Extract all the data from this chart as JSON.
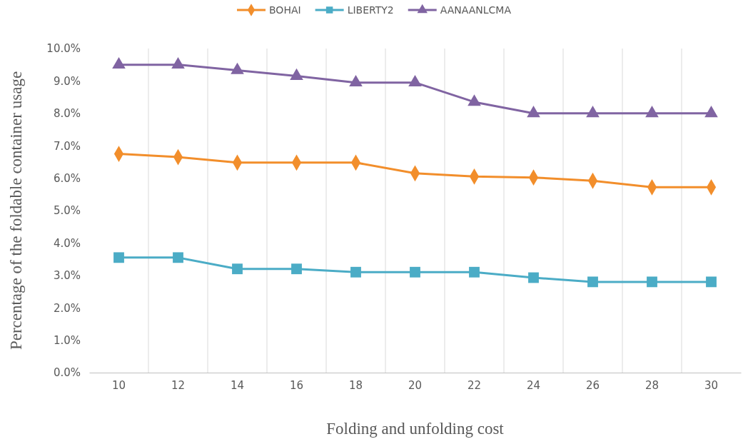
{
  "chart_data": {
    "type": "line",
    "xlabel": "Folding and unfolding cost",
    "ylabel": "Percentage of the foldable container usage",
    "categories": [
      "10",
      "12",
      "14",
      "16",
      "18",
      "20",
      "22",
      "24",
      "26",
      "28",
      "30"
    ],
    "ylim": [
      0,
      10
    ],
    "yticks": [
      {
        "value": 0,
        "label": "0.0%"
      },
      {
        "value": 1,
        "label": "1.0%"
      },
      {
        "value": 2,
        "label": "2.0%"
      },
      {
        "value": 3,
        "label": "3.0%"
      },
      {
        "value": 4,
        "label": "4.0%"
      },
      {
        "value": 5,
        "label": "5.0%"
      },
      {
        "value": 6,
        "label": "6.0%"
      },
      {
        "value": 7,
        "label": "7.0%"
      },
      {
        "value": 8,
        "label": "8.0%"
      },
      {
        "value": 9,
        "label": "9.0%"
      },
      {
        "value": 10,
        "label": "10.0%"
      }
    ],
    "grid": "x",
    "legend": "top",
    "series": [
      {
        "name": "BOHAI",
        "color": "#f28e2b",
        "marker": "diamond",
        "values": [
          6.75,
          6.65,
          6.48,
          6.48,
          6.48,
          6.15,
          6.05,
          6.02,
          5.92,
          5.72,
          5.72
        ]
      },
      {
        "name": "LIBERTY2",
        "color": "#4bacc6",
        "marker": "square",
        "values": [
          3.55,
          3.55,
          3.2,
          3.2,
          3.1,
          3.1,
          3.1,
          2.93,
          2.8,
          2.8,
          2.8
        ]
      },
      {
        "name": "AANAANLCMA",
        "color": "#8064a2",
        "marker": "triangle",
        "values": [
          9.5,
          9.5,
          9.33,
          9.15,
          8.95,
          8.95,
          8.35,
          8.0,
          8.0,
          8.0,
          8.0
        ]
      }
    ]
  }
}
